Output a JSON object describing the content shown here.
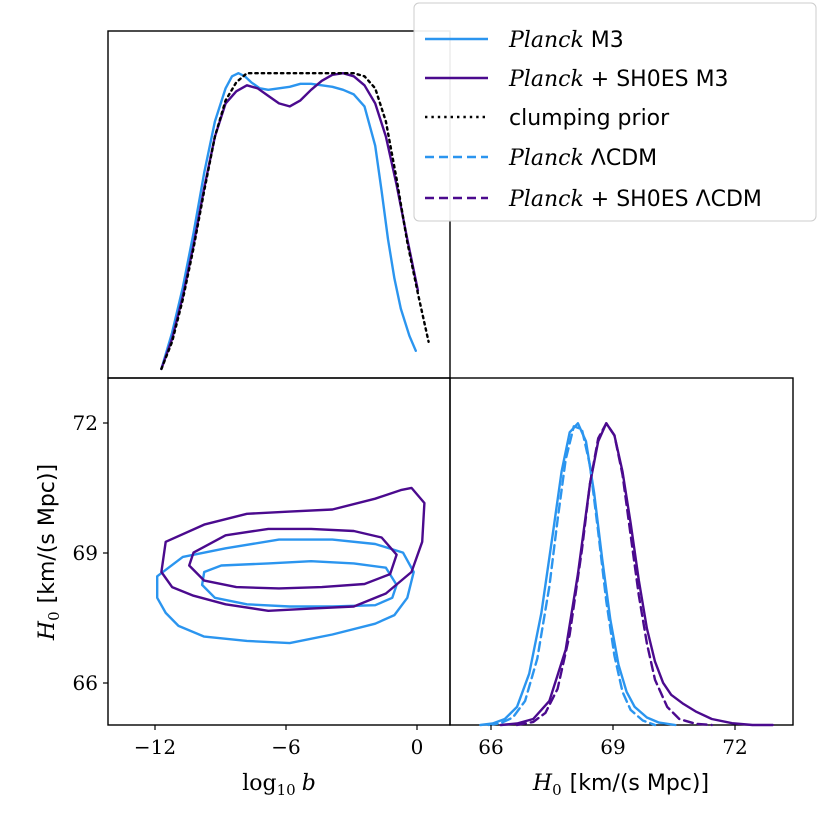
{
  "colors": {
    "planck": "#2b95ef",
    "planck_shoes": "#4b0a8e",
    "prior": "#000000"
  },
  "chart_data": [
    {
      "panel": "top-left",
      "type": "line",
      "title": "",
      "xlabel": "",
      "ylabel": "",
      "xlim": [
        -14.5,
        1.5
      ],
      "ylim": [
        0,
        1.15
      ],
      "series": [
        {
          "name": "Planck M3",
          "style": "solid",
          "color_key": "planck",
          "x": [
            -12,
            -11.5,
            -11,
            -10.5,
            -10,
            -9.5,
            -9,
            -8.7,
            -8.4,
            -8.1,
            -7.8,
            -7.4,
            -7,
            -6.5,
            -6,
            -5.5,
            -5,
            -4.5,
            -4,
            -3.5,
            -3,
            -2.5,
            -2,
            -1.7,
            -1.4,
            -1.1,
            -0.8,
            -0.4,
            -0.1
          ],
          "y": [
            0.03,
            0.15,
            0.3,
            0.48,
            0.68,
            0.85,
            0.96,
            1.0,
            1.01,
            1.0,
            0.98,
            0.96,
            0.955,
            0.96,
            0.965,
            0.975,
            0.975,
            0.97,
            0.965,
            0.955,
            0.94,
            0.9,
            0.77,
            0.62,
            0.46,
            0.33,
            0.23,
            0.14,
            0.09
          ]
        },
        {
          "name": "Planck + SH0ES M3",
          "style": "solid",
          "color_key": "planck_shoes",
          "x": [
            -12,
            -11.5,
            -11,
            -10.5,
            -10,
            -9.5,
            -9,
            -8.5,
            -8,
            -7.5,
            -7,
            -6.5,
            -6,
            -5.5,
            -5,
            -4.5,
            -4,
            -3.5,
            -3,
            -2.5,
            -2,
            -1.5,
            -1,
            -0.5,
            0
          ],
          "y": [
            0.03,
            0.13,
            0.27,
            0.44,
            0.63,
            0.8,
            0.91,
            0.95,
            0.97,
            0.96,
            0.935,
            0.91,
            0.9,
            0.92,
            0.955,
            0.985,
            1.005,
            1.01,
            1.0,
            0.97,
            0.91,
            0.8,
            0.64,
            0.46,
            0.29
          ]
        },
        {
          "name": "clumping prior",
          "style": "dotted",
          "color_key": "prior",
          "x": [
            -12,
            -11.5,
            -11,
            -10.5,
            -10,
            -9.5,
            -9,
            -8.5,
            -8,
            -7,
            -6,
            -5,
            -4,
            -3,
            -2.5,
            -2,
            -1.5,
            -1,
            -0.5,
            0,
            0.5
          ],
          "y": [
            0.03,
            0.12,
            0.26,
            0.43,
            0.62,
            0.8,
            0.92,
            0.98,
            1.01,
            1.01,
            1.01,
            1.01,
            1.01,
            1.01,
            1.0,
            0.96,
            0.85,
            0.66,
            0.45,
            0.28,
            0.12
          ]
        }
      ]
    },
    {
      "panel": "bottom-left",
      "type": "line",
      "subtype": "contour",
      "title": "",
      "xlabel": "log10 b",
      "ylabel": "H0 [km/(s Mpc)]",
      "xlim": [
        -14.5,
        1.5
      ],
      "ylim": [
        64.95,
        73.0
      ],
      "xticks": [
        -12,
        -6,
        0
      ],
      "xtick_labels": [
        "−12",
        "−6",
        "0"
      ],
      "yticks": [
        66,
        69,
        72
      ],
      "ytick_labels": [
        "66",
        "69",
        "72"
      ],
      "contours": [
        {
          "name": "Planck M3 68%",
          "color_key": "planck",
          "x": [
            -9.2,
            -7,
            -5,
            -3,
            -1.5,
            -1,
            -1.2,
            -2,
            -4,
            -6,
            -8,
            -9.5,
            -10.1,
            -10,
            -9.2
          ],
          "y": [
            68.65,
            68.7,
            68.75,
            68.7,
            68.6,
            68.2,
            67.9,
            67.73,
            67.7,
            67.7,
            67.75,
            67.9,
            68.2,
            68.5,
            68.65
          ]
        },
        {
          "name": "Planck M3 95%",
          "color_key": "planck",
          "x": [
            -12.2,
            -11,
            -9,
            -6.5,
            -4,
            -2,
            -0.7,
            -0.2,
            -0.5,
            -1.1,
            -2,
            -4,
            -6,
            -8,
            -10,
            -11.2,
            -11.8,
            -12.2,
            -12.2
          ],
          "y": [
            68.4,
            68.85,
            69.05,
            69.25,
            69.25,
            69.15,
            68.95,
            68.5,
            67.9,
            67.5,
            67.3,
            67.05,
            66.85,
            66.9,
            67.0,
            67.25,
            67.55,
            67.9,
            68.4
          ]
        },
        {
          "name": "Planck + SH0ES M3 68%",
          "color_key": "planck_shoes",
          "x": [
            -10.5,
            -9,
            -7,
            -5,
            -3,
            -1.7,
            -1,
            -1.3,
            -2.5,
            -4.5,
            -6.5,
            -8.5,
            -10,
            -10.7,
            -10.5
          ],
          "y": [
            68.95,
            69.35,
            69.5,
            69.5,
            69.45,
            69.3,
            68.9,
            68.45,
            68.22,
            68.15,
            68.12,
            68.15,
            68.3,
            68.65,
            68.95
          ]
        },
        {
          "name": "Planck + SH0ES M3 95%",
          "color_key": "planck_shoes",
          "x": [
            -11.8,
            -10,
            -8,
            -6,
            -4,
            -2,
            -0.8,
            -0.3,
            0.3,
            0.2,
            -0.3,
            -1.5,
            -3,
            -5,
            -7,
            -9,
            -10.5,
            -11.5,
            -12,
            -11.8
          ],
          "y": [
            69.2,
            69.6,
            69.85,
            69.9,
            69.95,
            70.2,
            70.4,
            70.45,
            70.1,
            69.2,
            68.5,
            68.0,
            67.7,
            67.65,
            67.6,
            67.75,
            67.95,
            68.15,
            68.5,
            69.2
          ]
        }
      ]
    },
    {
      "panel": "bottom-right",
      "type": "line",
      "title": "",
      "xlabel": "H0 [km/(s Mpc)]",
      "ylabel": "",
      "xlim": [
        64.95,
        73.4
      ],
      "ylim": [
        0,
        1.15
      ],
      "xticks": [
        66,
        69,
        72
      ],
      "xtick_labels": [
        "66",
        "69",
        "72"
      ],
      "series": [
        {
          "name": "Planck M3",
          "style": "solid",
          "color_key": "planck",
          "x": [
            65.7,
            66.0,
            66.3,
            66.6,
            66.9,
            67.2,
            67.5,
            67.7,
            67.9,
            68.1,
            68.3,
            68.5,
            68.7,
            68.9,
            69.1,
            69.3,
            69.5,
            69.8,
            70.1,
            70.5
          ],
          "y": [
            0.0,
            0.005,
            0.02,
            0.06,
            0.17,
            0.37,
            0.65,
            0.84,
            0.97,
            1.0,
            0.94,
            0.77,
            0.55,
            0.35,
            0.2,
            0.11,
            0.06,
            0.025,
            0.008,
            0.0
          ]
        },
        {
          "name": "Planck + SH0ES M3",
          "style": "solid",
          "color_key": "planck_shoes",
          "x": [
            66.2,
            66.6,
            67.0,
            67.4,
            67.8,
            68.1,
            68.4,
            68.6,
            68.8,
            69.0,
            69.2,
            69.4,
            69.6,
            69.8,
            70.0,
            70.2,
            70.4,
            70.7,
            71.0,
            71.4,
            71.9,
            72.4,
            72.9
          ],
          "y": [
            0.0,
            0.005,
            0.02,
            0.08,
            0.25,
            0.5,
            0.8,
            0.94,
            1.0,
            0.96,
            0.84,
            0.67,
            0.48,
            0.32,
            0.21,
            0.14,
            0.1,
            0.07,
            0.045,
            0.02,
            0.006,
            0.0,
            0.0
          ]
        },
        {
          "name": "Planck ΛCDM",
          "style": "dashed",
          "color_key": "planck",
          "x": [
            65.9,
            66.2,
            66.5,
            66.8,
            67.1,
            67.4,
            67.6,
            67.8,
            68.0,
            68.2,
            68.4,
            68.6,
            68.8,
            69.0,
            69.2,
            69.4,
            69.7,
            70.0
          ],
          "y": [
            0.0,
            0.006,
            0.025,
            0.08,
            0.22,
            0.46,
            0.68,
            0.88,
            0.99,
            0.98,
            0.86,
            0.64,
            0.41,
            0.23,
            0.11,
            0.05,
            0.015,
            0.0
          ]
        },
        {
          "name": "Planck + SH0ES ΛCDM",
          "style": "dashed",
          "color_key": "planck_shoes",
          "x": [
            66.6,
            67.0,
            67.3,
            67.6,
            67.9,
            68.2,
            68.4,
            68.6,
            68.8,
            69.0,
            69.2,
            69.4,
            69.6,
            69.8,
            70.0,
            70.3,
            70.6,
            71.0,
            71.4
          ],
          "y": [
            0.0,
            0.01,
            0.04,
            0.12,
            0.3,
            0.58,
            0.8,
            0.95,
            1.0,
            0.96,
            0.83,
            0.63,
            0.43,
            0.27,
            0.15,
            0.06,
            0.02,
            0.004,
            0.0
          ]
        }
      ]
    }
  ],
  "axes": {
    "x_left_label": "log",
    "x_left_label_sub": "10",
    "x_left_label_var": "b",
    "x_right_label_var": "H",
    "x_right_label_sub": "0",
    "x_right_label_unit": "[km/(s Mpc)]",
    "y_label_var": "H",
    "y_label_sub": "0",
    "y_label_unit": "[km/(s Mpc)]"
  },
  "legend": {
    "location": "top-right",
    "entries": [
      {
        "italic": "Planck",
        "text": "M3",
        "style": "solid",
        "color_key": "planck"
      },
      {
        "italic": "Planck",
        "text": "+ SH0ES M3",
        "style": "solid",
        "color_key": "planck_shoes"
      },
      {
        "italic": "",
        "text": "clumping prior",
        "style": "dotted",
        "color_key": "prior"
      },
      {
        "italic": "Planck",
        "text": "ΛCDM",
        "style": "dashed",
        "color_key": "planck"
      },
      {
        "italic": "Planck",
        "text": "+ SH0ES ΛCDM",
        "style": "dashed",
        "color_key": "planck_shoes"
      }
    ]
  }
}
